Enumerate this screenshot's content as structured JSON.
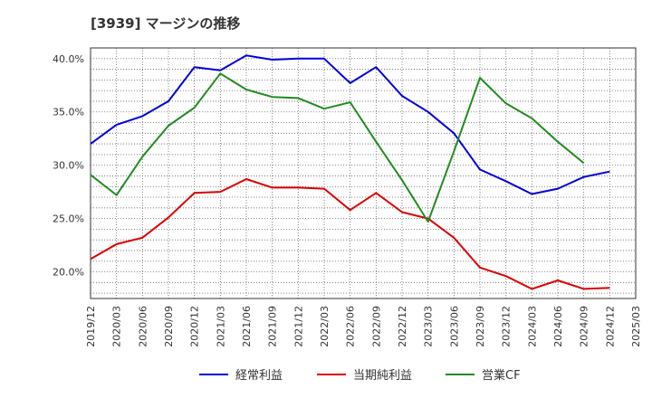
{
  "chart_data": {
    "type": "line",
    "title": "[3939]  マージンの推移",
    "xlabel": "",
    "ylabel": "",
    "x": [
      "2019/12",
      "2020/03",
      "2020/06",
      "2020/09",
      "2020/12",
      "2021/03",
      "2021/06",
      "2021/09",
      "2021/12",
      "2022/03",
      "2022/06",
      "2022/09",
      "2022/12",
      "2023/03",
      "2023/06",
      "2023/09",
      "2023/12",
      "2024/03",
      "2024/06",
      "2024/09",
      "2024/12",
      "2025/03"
    ],
    "yticks": [
      "20.0%",
      "25.0%",
      "30.0%",
      "35.0%",
      "40.0%"
    ],
    "ylim": [
      17.5,
      41.0
    ],
    "grid": true,
    "legend_position": "bottom",
    "series": [
      {
        "name": "経常利益",
        "color": "#0000dd",
        "values": [
          32.0,
          33.8,
          34.6,
          36.0,
          39.2,
          38.9,
          40.3,
          39.9,
          40.0,
          40.0,
          37.7,
          39.2,
          36.5,
          35.0,
          33.0,
          29.6,
          28.5,
          27.3,
          27.8,
          28.9,
          29.4,
          null
        ]
      },
      {
        "name": "当期純利益",
        "color": "#dd0000",
        "values": [
          21.2,
          22.6,
          23.2,
          25.1,
          27.4,
          27.5,
          28.7,
          27.9,
          27.9,
          27.8,
          25.8,
          27.4,
          25.6,
          25.0,
          23.2,
          20.4,
          19.6,
          18.4,
          19.2,
          18.4,
          18.5,
          null
        ]
      },
      {
        "name": "営業CF",
        "color": "#228b22",
        "values": [
          29.1,
          27.2,
          30.8,
          33.7,
          35.4,
          38.6,
          37.1,
          36.4,
          36.3,
          35.3,
          35.9,
          32.2,
          28.6,
          24.7,
          31.3,
          38.2,
          35.8,
          34.4,
          32.2,
          30.2,
          null,
          null
        ]
      }
    ]
  }
}
